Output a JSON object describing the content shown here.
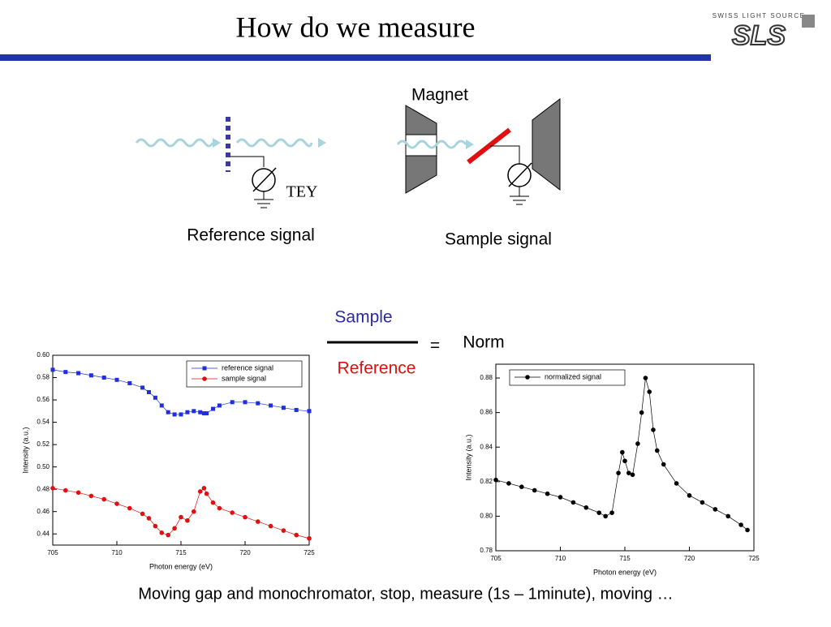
{
  "title": "How do we measure",
  "logo": {
    "top": "SWISS LIGHT SOURCE",
    "mark": "SLS"
  },
  "diagram": {
    "magnet": "Magnet",
    "tey": "TEY",
    "reference": "Reference signal",
    "sample": "Sample signal"
  },
  "formula": {
    "numerator": "Sample",
    "denominator": "Reference",
    "equals": "=",
    "result": "Norm"
  },
  "footer": "Moving gap and monochromator, stop, measure (1s – 1minute), moving …",
  "chart_data": [
    {
      "type": "line",
      "xlabel": "Photon energy (eV)",
      "ylabel": "Intensity (a.u.)",
      "xlim": [
        705,
        725
      ],
      "xticks": [
        705,
        710,
        715,
        720,
        725
      ],
      "ylim": [
        0.43,
        0.6
      ],
      "yticks": [
        0.44,
        0.46,
        0.48,
        {
          "value": 0.5,
          "label": "0.50"
        },
        0.52,
        0.54,
        0.56,
        0.58,
        {
          "value": 0.6,
          "label": "0.60"
        }
      ],
      "legend": "upper right",
      "x": [
        705,
        706,
        707,
        708,
        709,
        710,
        711,
        712,
        712.5,
        713,
        713.5,
        714,
        714.5,
        715,
        715.5,
        716,
        716.5,
        716.8,
        717,
        717.5,
        718,
        719,
        720,
        721,
        722,
        723,
        724,
        725
      ],
      "series": [
        {
          "name": "reference signal",
          "color": "#1f2ee0",
          "marker": "square",
          "values": [
            0.587,
            0.585,
            0.584,
            0.582,
            0.58,
            0.578,
            0.575,
            0.571,
            0.567,
            0.562,
            0.555,
            0.549,
            0.547,
            0.547,
            0.549,
            0.55,
            0.549,
            0.548,
            0.548,
            0.552,
            0.555,
            0.558,
            0.558,
            0.557,
            0.555,
            0.553,
            0.551,
            0.55
          ]
        },
        {
          "name": "sample signal",
          "color": "#e01010",
          "marker": "circle",
          "values": [
            0.481,
            0.479,
            0.477,
            0.474,
            0.471,
            0.467,
            0.463,
            0.458,
            0.454,
            0.447,
            0.441,
            0.439,
            0.445,
            0.455,
            0.452,
            0.46,
            0.478,
            0.481,
            0.476,
            0.468,
            0.463,
            0.459,
            0.455,
            0.451,
            0.447,
            0.443,
            0.439,
            0.436
          ]
        }
      ]
    },
    {
      "type": "line",
      "xlabel": "Photon energy (eV)",
      "ylabel": "Intensity (a.u.)",
      "xlim": [
        705,
        725
      ],
      "xticks": [
        705,
        710,
        715,
        720,
        725
      ],
      "ylim": [
        0.78,
        0.888
      ],
      "yticks": [
        0.78,
        {
          "value": 0.8,
          "label": "0.80"
        },
        0.82,
        0.84,
        0.86,
        0.88
      ],
      "legend": "upper left",
      "x": [
        705,
        706,
        707,
        708,
        709,
        710,
        711,
        712,
        713,
        713.5,
        714,
        714.5,
        714.8,
        715,
        715.3,
        715.6,
        716,
        716.3,
        716.6,
        716.9,
        717.2,
        717.5,
        718,
        719,
        720,
        721,
        722,
        723,
        724,
        724.5
      ],
      "series": [
        {
          "name": "normalized signal",
          "color": "#000000",
          "marker": "circle",
          "values": [
            0.821,
            0.819,
            0.817,
            0.815,
            0.813,
            0.811,
            0.808,
            0.805,
            0.802,
            0.8,
            0.802,
            0.825,
            0.837,
            0.832,
            0.825,
            0.824,
            0.842,
            0.86,
            0.88,
            0.872,
            0.85,
            0.838,
            0.83,
            0.819,
            0.812,
            0.808,
            0.804,
            0.8,
            0.795,
            0.792
          ]
        }
      ]
    }
  ]
}
